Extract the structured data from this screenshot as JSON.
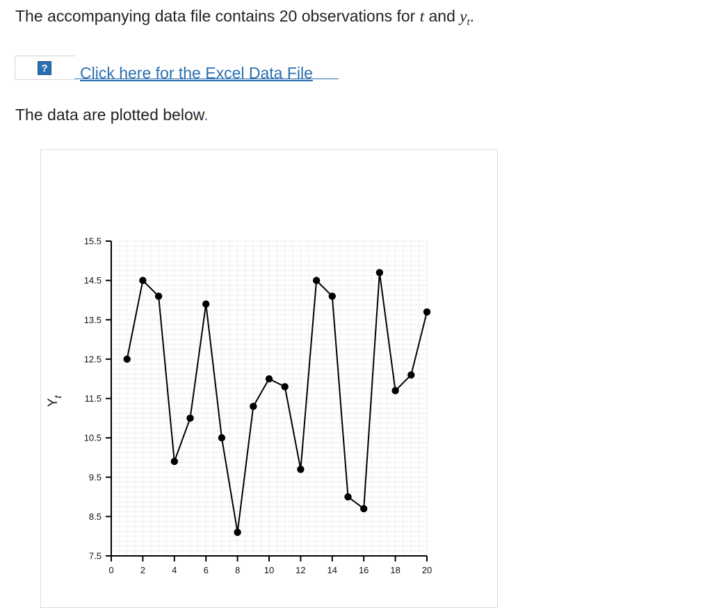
{
  "intro": {
    "text_before": "The accompanying data file contains 20 observations for ",
    "var_t": "t",
    "and": " and ",
    "var_y": "y",
    "var_y_sub": "t",
    "period": "."
  },
  "file": {
    "help_icon": "?",
    "link_label": "Click here for the Excel Data File"
  },
  "plotted": {
    "text": "The data are plotted below",
    "period": "."
  },
  "colors": {
    "link": "#2a6fb0",
    "line": "#000000",
    "grid": "#eeeeee"
  },
  "chart_data": {
    "type": "line",
    "title": "",
    "xlabel": "",
    "ylabel": "Y",
    "ylabel_sub": "t",
    "xlim": [
      0,
      20
    ],
    "ylim": [
      7.5,
      15.5
    ],
    "x_ticks": [
      "0",
      "2",
      "4",
      "6",
      "8",
      "10",
      "12",
      "14",
      "16",
      "18",
      "20"
    ],
    "y_ticks": [
      "7.5",
      "8.5",
      "9.5",
      "10.5",
      "11.5",
      "12.5",
      "13.5",
      "14.5",
      "15.5"
    ],
    "grid": true,
    "markers": "filled-circle",
    "series": [
      {
        "x": [
          1,
          2,
          3,
          4,
          5,
          6,
          7,
          8,
          9,
          10,
          11,
          12,
          13,
          14,
          15,
          16,
          17,
          18,
          19,
          20
        ],
        "values": [
          12.5,
          14.5,
          14.1,
          9.9,
          11.0,
          13.9,
          10.5,
          8.1,
          11.3,
          12.0,
          11.8,
          9.7,
          14.5,
          14.1,
          9.0,
          8.7,
          14.7,
          11.7,
          12.1,
          13.7
        ]
      }
    ]
  }
}
